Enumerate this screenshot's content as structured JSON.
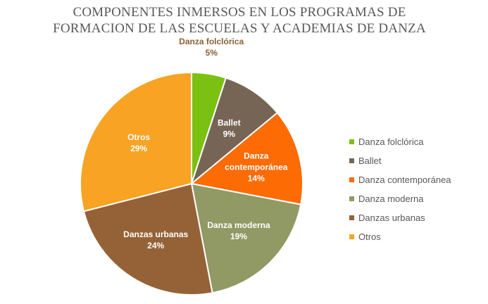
{
  "chart_data": {
    "type": "pie",
    "title_lines": [
      "COMPONENTES INMERSOS EN LOS PROGRAMAS DE",
      "FORMACION DE LAS ESCUELAS Y ACADEMIAS DE DANZA"
    ],
    "legend_position": "right",
    "slices": [
      {
        "name": "Danza folclórica",
        "value": 5,
        "label": "5%",
        "label_lines": [
          "Danza folclórica",
          "5%"
        ],
        "color": "#7ac111",
        "label_color": "#8b6035",
        "label_outside": true
      },
      {
        "name": "Ballet",
        "value": 9,
        "label": "9%",
        "label_lines": [
          "Ballet",
          "9%"
        ],
        "color": "#766555",
        "label_color": "#ffffff"
      },
      {
        "name": "Danza contemporánea",
        "value": 14,
        "label": "14%",
        "label_lines": [
          "Danza",
          "contemporánea",
          "14%"
        ],
        "color": "#fd6b05",
        "label_color": "#ffffff"
      },
      {
        "name": "Danza moderna",
        "value": 19,
        "label": "19%",
        "label_lines": [
          "Danza moderna",
          "19%"
        ],
        "color": "#919964",
        "label_color": "#ffffff"
      },
      {
        "name": "Danzas urbanas",
        "value": 24,
        "label": "24%",
        "label_lines": [
          "Danzas urbanas",
          "24%"
        ],
        "color": "#956237",
        "label_color": "#ffffff"
      },
      {
        "name": "Otros",
        "value": 29,
        "label": "29%",
        "label_lines": [
          "Otros",
          "29%"
        ],
        "color": "#f8a323",
        "label_color": "#ffffff"
      }
    ]
  }
}
